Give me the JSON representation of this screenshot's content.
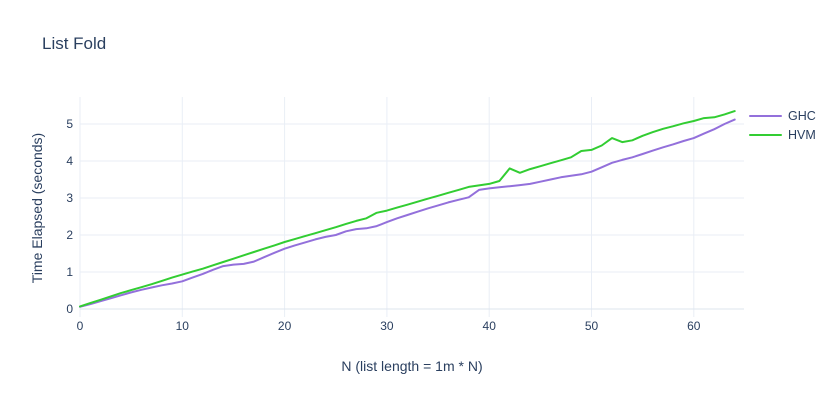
{
  "header": {
    "title": "List Fold"
  },
  "chart_data": {
    "type": "line",
    "title": "List Fold",
    "xlabel": "N (list length = 1m * N)",
    "ylabel": "Time Elapsed (seconds)",
    "x_ticks": [
      0,
      10,
      20,
      30,
      40,
      50,
      60
    ],
    "y_ticks": [
      0,
      1,
      2,
      3,
      4,
      5
    ],
    "xlim": [
      0,
      64
    ],
    "ylim": [
      -0.2,
      5.6
    ],
    "grid": true,
    "legend_position": "right",
    "colors": {
      "grid": "#e9eef6",
      "zeroline": "#dde4ee",
      "text": "#2a3f5f",
      "background": "#ffffff"
    },
    "x": [
      0,
      1,
      2,
      3,
      4,
      5,
      6,
      7,
      8,
      9,
      10,
      11,
      12,
      13,
      14,
      15,
      16,
      17,
      18,
      19,
      20,
      21,
      22,
      23,
      24,
      25,
      26,
      27,
      28,
      29,
      30,
      31,
      32,
      33,
      34,
      35,
      36,
      37,
      38,
      39,
      40,
      41,
      42,
      43,
      44,
      45,
      46,
      47,
      48,
      49,
      50,
      51,
      52,
      53,
      54,
      55,
      56,
      57,
      58,
      59,
      60,
      61,
      62,
      63,
      64
    ],
    "series": [
      {
        "name": "GHC",
        "color": "#9370db",
        "values": [
          0.06,
          0.13,
          0.21,
          0.29,
          0.37,
          0.45,
          0.52,
          0.58,
          0.64,
          0.69,
          0.75,
          0.85,
          0.95,
          1.06,
          1.16,
          1.2,
          1.22,
          1.28,
          1.4,
          1.52,
          1.63,
          1.72,
          1.8,
          1.88,
          1.95,
          2.0,
          2.1,
          2.16,
          2.18,
          2.24,
          2.35,
          2.45,
          2.54,
          2.63,
          2.72,
          2.8,
          2.88,
          2.95,
          3.02,
          3.22,
          3.26,
          3.29,
          3.32,
          3.35,
          3.38,
          3.44,
          3.5,
          3.56,
          3.6,
          3.64,
          3.71,
          3.83,
          3.95,
          4.03,
          4.1,
          4.19,
          4.28,
          4.37,
          4.45,
          4.54,
          4.62,
          4.74,
          4.86,
          5.0,
          5.12
        ]
      },
      {
        "name": "HVM",
        "color": "#32cd32",
        "values": [
          0.07,
          0.16,
          0.25,
          0.34,
          0.43,
          0.51,
          0.59,
          0.67,
          0.76,
          0.85,
          0.93,
          1.01,
          1.09,
          1.18,
          1.27,
          1.36,
          1.45,
          1.54,
          1.63,
          1.72,
          1.81,
          1.89,
          1.97,
          2.05,
          2.13,
          2.21,
          2.3,
          2.38,
          2.45,
          2.6,
          2.66,
          2.74,
          2.82,
          2.9,
          2.98,
          3.06,
          3.14,
          3.22,
          3.3,
          3.34,
          3.38,
          3.46,
          3.8,
          3.68,
          3.78,
          3.86,
          3.94,
          4.02,
          4.1,
          4.27,
          4.3,
          4.42,
          4.62,
          4.51,
          4.56,
          4.68,
          4.78,
          4.87,
          4.94,
          5.02,
          5.08,
          5.16,
          5.18,
          5.26,
          5.35
        ]
      }
    ]
  }
}
